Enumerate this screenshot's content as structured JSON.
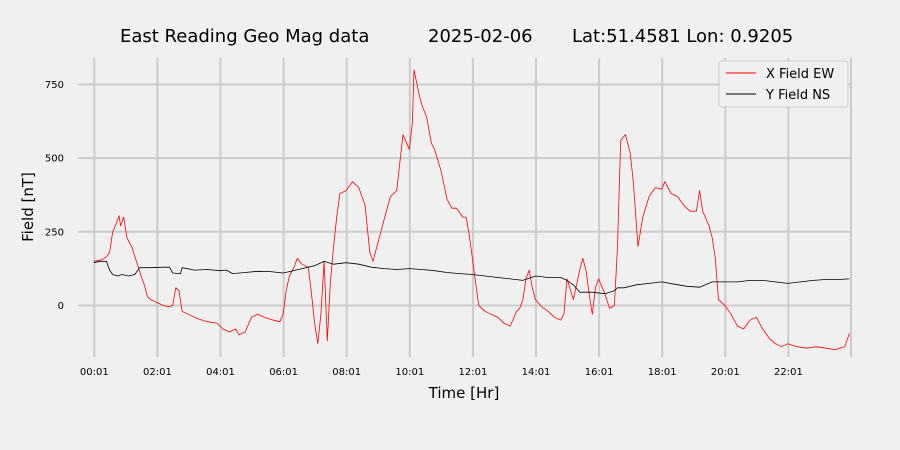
{
  "chart_data": {
    "type": "line",
    "title_parts": [
      "East Reading Geo Mag data",
      "2025-02-06",
      "Lat:51.4581  Lon: 0.9205"
    ],
    "xlabel": "Time  [Hr]",
    "ylabel": "Field  [nT]",
    "x_unit": "hours",
    "xlim": [
      -0.5,
      24.0
    ],
    "ylim": [
      -175,
      840
    ],
    "x_ticks": [
      {
        "x": 0.0167,
        "label": "00:01"
      },
      {
        "x": 2.0167,
        "label": "02:01"
      },
      {
        "x": 4.0167,
        "label": "04:01"
      },
      {
        "x": 6.0167,
        "label": "06:01"
      },
      {
        "x": 8.0167,
        "label": "08:01"
      },
      {
        "x": 10.0167,
        "label": "10:01"
      },
      {
        "x": 12.0167,
        "label": "12:01"
      },
      {
        "x": 14.0167,
        "label": "14:01"
      },
      {
        "x": 16.0167,
        "label": "16:01"
      },
      {
        "x": 18.0167,
        "label": "18:01"
      },
      {
        "x": 20.0167,
        "label": "20:01"
      },
      {
        "x": 22.0167,
        "label": "22:01"
      }
    ],
    "x_extra_gridlines": [
      24.0
    ],
    "y_ticks": [
      0,
      250,
      500,
      750
    ],
    "grid": true,
    "legend_position": "top-right",
    "series": [
      {
        "name": "X Field EW",
        "color": "#ff0000",
        "points": [
          [
            0.0,
            150
          ],
          [
            0.25,
            155
          ],
          [
            0.4,
            165
          ],
          [
            0.5,
            180
          ],
          [
            0.6,
            250
          ],
          [
            0.7,
            275
          ],
          [
            0.8,
            305
          ],
          [
            0.85,
            270
          ],
          [
            0.95,
            300
          ],
          [
            1.05,
            230
          ],
          [
            1.2,
            200
          ],
          [
            1.35,
            150
          ],
          [
            1.5,
            100
          ],
          [
            1.6,
            70
          ],
          [
            1.7,
            30
          ],
          [
            1.8,
            20
          ],
          [
            2.0,
            10
          ],
          [
            2.2,
            0
          ],
          [
            2.4,
            -5
          ],
          [
            2.5,
            0
          ],
          [
            2.6,
            60
          ],
          [
            2.7,
            50
          ],
          [
            2.8,
            -20
          ],
          [
            3.0,
            -30
          ],
          [
            3.3,
            -45
          ],
          [
            3.6,
            -55
          ],
          [
            3.9,
            -60
          ],
          [
            4.1,
            -80
          ],
          [
            4.3,
            -90
          ],
          [
            4.5,
            -80
          ],
          [
            4.6,
            -100
          ],
          [
            4.8,
            -90
          ],
          [
            5.0,
            -40
          ],
          [
            5.2,
            -30
          ],
          [
            5.4,
            -40
          ],
          [
            5.7,
            -50
          ],
          [
            5.9,
            -55
          ],
          [
            6.0,
            -30
          ],
          [
            6.1,
            50
          ],
          [
            6.2,
            100
          ],
          [
            6.35,
            130
          ],
          [
            6.45,
            160
          ],
          [
            6.6,
            140
          ],
          [
            6.8,
            130
          ],
          [
            6.9,
            40
          ],
          [
            7.0,
            -60
          ],
          [
            7.1,
            -130
          ],
          [
            7.2,
            -30
          ],
          [
            7.3,
            150
          ],
          [
            7.4,
            -120
          ],
          [
            7.5,
            80
          ],
          [
            7.6,
            200
          ],
          [
            7.7,
            300
          ],
          [
            7.8,
            380
          ],
          [
            8.0,
            390
          ],
          [
            8.2,
            420
          ],
          [
            8.4,
            400
          ],
          [
            8.6,
            340
          ],
          [
            8.75,
            180
          ],
          [
            8.85,
            150
          ],
          [
            9.0,
            210
          ],
          [
            9.2,
            290
          ],
          [
            9.4,
            370
          ],
          [
            9.6,
            390
          ],
          [
            9.8,
            580
          ],
          [
            10.0,
            530
          ],
          [
            10.1,
            620
          ],
          [
            10.15,
            800
          ],
          [
            10.3,
            720
          ],
          [
            10.4,
            680
          ],
          [
            10.55,
            640
          ],
          [
            10.7,
            550
          ],
          [
            10.8,
            530
          ],
          [
            11.0,
            460
          ],
          [
            11.2,
            360
          ],
          [
            11.35,
            330
          ],
          [
            11.5,
            330
          ],
          [
            11.7,
            300
          ],
          [
            11.8,
            300
          ],
          [
            11.9,
            240
          ],
          [
            12.0,
            160
          ],
          [
            12.1,
            80
          ],
          [
            12.2,
            0
          ],
          [
            12.4,
            -20
          ],
          [
            12.6,
            -30
          ],
          [
            12.8,
            -40
          ],
          [
            13.0,
            -60
          ],
          [
            13.2,
            -70
          ],
          [
            13.4,
            -20
          ],
          [
            13.5,
            -10
          ],
          [
            13.6,
            20
          ],
          [
            13.7,
            90
          ],
          [
            13.8,
            120
          ],
          [
            13.9,
            60
          ],
          [
            14.0,
            20
          ],
          [
            14.2,
            -5
          ],
          [
            14.4,
            -20
          ],
          [
            14.6,
            -40
          ],
          [
            14.8,
            -50
          ],
          [
            14.9,
            -30
          ],
          [
            15.0,
            90
          ],
          [
            15.2,
            20
          ],
          [
            15.4,
            120
          ],
          [
            15.5,
            160
          ],
          [
            15.6,
            120
          ],
          [
            15.7,
            40
          ],
          [
            15.8,
            -30
          ],
          [
            15.9,
            60
          ],
          [
            16.0,
            90
          ],
          [
            16.2,
            40
          ],
          [
            16.35,
            -10
          ],
          [
            16.5,
            0
          ],
          [
            16.6,
            200
          ],
          [
            16.7,
            560
          ],
          [
            16.85,
            580
          ],
          [
            17.0,
            520
          ],
          [
            17.1,
            420
          ],
          [
            17.25,
            200
          ],
          [
            17.4,
            300
          ],
          [
            17.6,
            370
          ],
          [
            17.8,
            400
          ],
          [
            18.0,
            395
          ],
          [
            18.1,
            420
          ],
          [
            18.3,
            380
          ],
          [
            18.5,
            370
          ],
          [
            18.7,
            340
          ],
          [
            18.9,
            320
          ],
          [
            19.1,
            320
          ],
          [
            19.2,
            390
          ],
          [
            19.3,
            320
          ],
          [
            19.5,
            270
          ],
          [
            19.6,
            230
          ],
          [
            19.7,
            160
          ],
          [
            19.8,
            20
          ],
          [
            20.0,
            0
          ],
          [
            20.2,
            -30
          ],
          [
            20.4,
            -70
          ],
          [
            20.6,
            -80
          ],
          [
            20.8,
            -50
          ],
          [
            21.0,
            -40
          ],
          [
            21.2,
            -80
          ],
          [
            21.4,
            -110
          ],
          [
            21.6,
            -130
          ],
          [
            21.8,
            -140
          ],
          [
            22.0,
            -130
          ],
          [
            22.3,
            -140
          ],
          [
            22.6,
            -145
          ],
          [
            22.9,
            -140
          ],
          [
            23.2,
            -145
          ],
          [
            23.5,
            -150
          ],
          [
            23.8,
            -140
          ],
          [
            23.95,
            -95
          ]
        ]
      },
      {
        "name": "Y Field NS",
        "color": "#000000",
        "points": [
          [
            0.0,
            145
          ],
          [
            0.2,
            150
          ],
          [
            0.4,
            150
          ],
          [
            0.5,
            120
          ],
          [
            0.6,
            105
          ],
          [
            0.75,
            100
          ],
          [
            0.9,
            105
          ],
          [
            1.1,
            100
          ],
          [
            1.3,
            105
          ],
          [
            1.45,
            128
          ],
          [
            1.8,
            128
          ],
          [
            2.2,
            130
          ],
          [
            2.4,
            130
          ],
          [
            2.5,
            110
          ],
          [
            2.75,
            108
          ],
          [
            2.8,
            128
          ],
          [
            3.2,
            120
          ],
          [
            3.6,
            122
          ],
          [
            4.0,
            118
          ],
          [
            4.2,
            120
          ],
          [
            4.4,
            108
          ],
          [
            4.8,
            112
          ],
          [
            5.2,
            116
          ],
          [
            5.6,
            115
          ],
          [
            6.0,
            110
          ],
          [
            6.2,
            115
          ],
          [
            6.6,
            125
          ],
          [
            7.0,
            135
          ],
          [
            7.3,
            150
          ],
          [
            7.6,
            140
          ],
          [
            8.0,
            145
          ],
          [
            8.4,
            140
          ],
          [
            8.8,
            130
          ],
          [
            9.2,
            125
          ],
          [
            9.6,
            122
          ],
          [
            10.0,
            125
          ],
          [
            10.4,
            122
          ],
          [
            10.8,
            118
          ],
          [
            11.2,
            112
          ],
          [
            11.6,
            108
          ],
          [
            12.0,
            105
          ],
          [
            12.4,
            100
          ],
          [
            12.8,
            95
          ],
          [
            13.2,
            90
          ],
          [
            13.6,
            85
          ],
          [
            14.0,
            100
          ],
          [
            14.4,
            95
          ],
          [
            14.8,
            95
          ],
          [
            15.0,
            85
          ],
          [
            15.2,
            70
          ],
          [
            15.4,
            45
          ],
          [
            15.8,
            45
          ],
          [
            16.2,
            40
          ],
          [
            16.5,
            50
          ],
          [
            16.6,
            60
          ],
          [
            16.8,
            60
          ],
          [
            17.2,
            70
          ],
          [
            17.6,
            75
          ],
          [
            18.0,
            80
          ],
          [
            18.4,
            72
          ],
          [
            18.8,
            65
          ],
          [
            19.2,
            62
          ],
          [
            19.6,
            80
          ],
          [
            20.0,
            80
          ],
          [
            20.4,
            80
          ],
          [
            20.8,
            85
          ],
          [
            21.2,
            85
          ],
          [
            21.6,
            80
          ],
          [
            22.0,
            75
          ],
          [
            22.4,
            80
          ],
          [
            22.8,
            85
          ],
          [
            23.2,
            88
          ],
          [
            23.6,
            88
          ],
          [
            23.95,
            90
          ]
        ]
      }
    ]
  }
}
